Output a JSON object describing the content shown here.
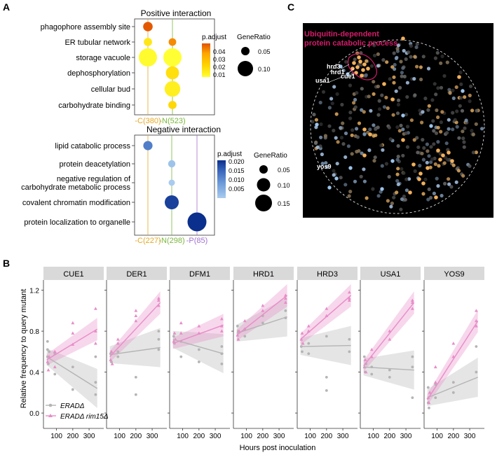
{
  "panel_labels": {
    "a": "A",
    "b": "B",
    "c": "C"
  },
  "colors": {
    "pos_scale": [
      "#ffff33",
      "#ffd400",
      "#ffa500",
      "#f07800",
      "#e05200"
    ],
    "neg_scale": [
      "#a8cbef",
      "#6c9ad8",
      "#3561b8",
      "#0b2f8c"
    ],
    "group_C": "#e5a823",
    "group_N": "#7ab83c",
    "group_P": "#a070d0",
    "erad": "#b4b4b4",
    "rim": "#e88cc8",
    "cluster": "#d61b6a"
  },
  "panel_a": {
    "positive": {
      "title": "Positive interaction",
      "terms": [
        "phagophore assembly site",
        "ER tubular network",
        "storage vacuole",
        "dephosphorylation",
        "cellular bud",
        "carbohydrate binding"
      ],
      "groups": [
        "-C(380)",
        "-N(523)"
      ],
      "points": [
        {
          "term": 0,
          "group": 0,
          "ratio": 0.06,
          "padj": 0.043
        },
        {
          "term": 1,
          "group": 0,
          "ratio": 0.05,
          "padj": 0.008
        },
        {
          "term": 1,
          "group": 1,
          "ratio": 0.045,
          "padj": 0.03
        },
        {
          "term": 2,
          "group": 0,
          "ratio": 0.13,
          "padj": 0.003
        },
        {
          "term": 2,
          "group": 1,
          "ratio": 0.13,
          "padj": 0.002
        },
        {
          "term": 3,
          "group": 1,
          "ratio": 0.09,
          "padj": 0.01
        },
        {
          "term": 4,
          "group": 1,
          "ratio": 0.11,
          "padj": 0.006
        },
        {
          "term": 5,
          "group": 1,
          "ratio": 0.05,
          "padj": 0.012
        }
      ],
      "padj_title": "p.adjust",
      "padj_ticks": [
        "0.04",
        "0.03",
        "0.02",
        "0.01"
      ],
      "ratio_title": "GeneRatio",
      "ratio_ticks": [
        "0.05",
        "0.10"
      ]
    },
    "negative": {
      "title": "Negative interaction",
      "terms": [
        "lipid catabolic process",
        "protein deacetylation",
        "negative regulation of",
        "carbohydrate metabolic process",
        "covalent chromatin modification",
        "protein localization to organelle"
      ],
      "groups": [
        "-C(227)",
        "-N(298)",
        "-P(85)"
      ],
      "points": [
        {
          "row": 0,
          "group": 0,
          "ratio": 0.07,
          "padj": 0.012
        },
        {
          "row": 1,
          "group": 1,
          "ratio": 0.05,
          "padj": 0.004
        },
        {
          "row": 2,
          "group": 1,
          "ratio": 0.04,
          "padj": 0.003
        },
        {
          "row": 3,
          "group": 1,
          "ratio": 0.12,
          "padj": 0.019
        },
        {
          "row": 4,
          "group": 2,
          "ratio": 0.17,
          "padj": 0.021
        }
      ],
      "padj_title": "p.adjust",
      "padj_ticks": [
        "0.020",
        "0.015",
        "0.010",
        "0.005"
      ],
      "ratio_title": "GeneRatio",
      "ratio_ticks": [
        "0.05",
        "0.10",
        "0.15"
      ]
    }
  },
  "panel_b": {
    "chart_data": {
      "type": "scatter",
      "xlabel": "Hours post inoculation",
      "ylabel": "Relative frequency to query mutant",
      "xticks": [
        100,
        200,
        300
      ],
      "yticks": [
        "0.0",
        "0.4",
        "0.8",
        "1.2"
      ],
      "xlim": [
        20,
        390
      ],
      "ylim": [
        -0.15,
        1.3
      ],
      "legend": [
        "ERADΔ",
        "ERADΔ rim15Δ"
      ],
      "facets": [
        {
          "name": "CUE1",
          "erad": {
            "start": 0.55,
            "end": 0.24
          },
          "rim": {
            "start": 0.52,
            "end": 0.82
          },
          "erad_pts": [
            [
              45,
              0.7
            ],
            [
              45,
              0.62
            ],
            [
              45,
              0.55
            ],
            [
              50,
              0.48
            ],
            [
              55,
              0.6
            ],
            [
              90,
              0.58
            ],
            [
              90,
              0.38
            ],
            [
              200,
              0.45
            ],
            [
              200,
              0.23
            ],
            [
              340,
              0.55
            ],
            [
              340,
              0.3
            ],
            [
              340,
              0.18
            ]
          ],
          "rim_pts": [
            [
              45,
              0.5
            ],
            [
              50,
              0.42
            ],
            [
              55,
              0.55
            ],
            [
              90,
              0.6
            ],
            [
              90,
              0.45
            ],
            [
              200,
              0.78
            ],
            [
              200,
              0.67
            ],
            [
              200,
              0.88
            ],
            [
              340,
              1.02
            ],
            [
              340,
              0.8
            ],
            [
              340,
              0.68
            ]
          ]
        },
        {
          "name": "DER1",
          "erad": {
            "start": 0.57,
            "end": 0.64
          },
          "rim": {
            "start": 0.55,
            "end": 1.08
          },
          "erad_pts": [
            [
              45,
              0.58
            ],
            [
              50,
              0.5
            ],
            [
              90,
              0.6
            ],
            [
              90,
              0.55
            ],
            [
              200,
              0.35
            ],
            [
              200,
              0.18
            ],
            [
              340,
              0.62
            ],
            [
              340,
              0.72
            ],
            [
              340,
              0.8
            ]
          ],
          "rim_pts": [
            [
              45,
              0.52
            ],
            [
              50,
              0.6
            ],
            [
              55,
              0.48
            ],
            [
              90,
              0.72
            ],
            [
              90,
              0.68
            ],
            [
              200,
              0.95
            ],
            [
              200,
              0.9
            ],
            [
              200,
              1.0
            ],
            [
              340,
              1.05
            ],
            [
              340,
              1.1
            ],
            [
              340,
              1.12
            ]
          ]
        },
        {
          "name": "DFM1",
          "erad": {
            "start": 0.72,
            "end": 0.58
          },
          "rim": {
            "start": 0.68,
            "end": 0.86
          },
          "erad_pts": [
            [
              45,
              0.75
            ],
            [
              50,
              0.68
            ],
            [
              90,
              0.7
            ],
            [
              90,
              0.55
            ],
            [
              200,
              0.62
            ],
            [
              200,
              0.5
            ],
            [
              340,
              0.58
            ],
            [
              340,
              0.65
            ],
            [
              340,
              0.48
            ]
          ],
          "rim_pts": [
            [
              45,
              0.7
            ],
            [
              50,
              0.78
            ],
            [
              55,
              0.72
            ],
            [
              90,
              0.78
            ],
            [
              90,
              0.88
            ],
            [
              200,
              0.85
            ],
            [
              200,
              0.78
            ],
            [
              340,
              0.92
            ],
            [
              340,
              0.8
            ],
            [
              340,
              0.85
            ]
          ]
        },
        {
          "name": "HRD1",
          "erad": {
            "start": 0.78,
            "end": 0.94
          },
          "rim": {
            "start": 0.76,
            "end": 1.15
          },
          "erad_pts": [
            [
              45,
              0.85
            ],
            [
              50,
              0.8
            ],
            [
              90,
              0.82
            ],
            [
              90,
              0.75
            ],
            [
              200,
              0.88
            ],
            [
              200,
              0.95
            ],
            [
              340,
              0.93
            ],
            [
              340,
              1.0
            ]
          ],
          "rim_pts": [
            [
              45,
              0.76
            ],
            [
              50,
              0.72
            ],
            [
              55,
              0.8
            ],
            [
              90,
              0.82
            ],
            [
              90,
              0.9
            ],
            [
              200,
              1.0
            ],
            [
              200,
              1.05
            ],
            [
              340,
              1.15
            ],
            [
              340,
              1.12
            ],
            [
              340,
              1.08
            ]
          ]
        },
        {
          "name": "HRD3",
          "erad": {
            "start": 0.65,
            "end": 0.66
          },
          "rim": {
            "start": 0.72,
            "end": 1.15
          },
          "erad_pts": [
            [
              45,
              0.65
            ],
            [
              50,
              0.6
            ],
            [
              90,
              0.68
            ],
            [
              90,
              0.58
            ],
            [
              200,
              0.75
            ],
            [
              200,
              0.35
            ],
            [
              200,
              0.22
            ],
            [
              340,
              0.72
            ],
            [
              340,
              0.6
            ]
          ],
          "rim_pts": [
            [
              45,
              0.72
            ],
            [
              50,
              0.78
            ],
            [
              55,
              0.68
            ],
            [
              90,
              0.85
            ],
            [
              90,
              0.8
            ],
            [
              200,
              1.02
            ],
            [
              200,
              0.95
            ],
            [
              340,
              1.18
            ],
            [
              340,
              1.12
            ],
            [
              340,
              1.1
            ]
          ]
        },
        {
          "name": "USA1",
          "erad": {
            "start": 0.45,
            "end": 0.42
          },
          "rim": {
            "start": 0.46,
            "end": 1.08
          },
          "erad_pts": [
            [
              45,
              0.55
            ],
            [
              50,
              0.4
            ],
            [
              55,
              0.48
            ],
            [
              90,
              0.45
            ],
            [
              90,
              0.38
            ],
            [
              200,
              0.42
            ],
            [
              200,
              0.35
            ],
            [
              340,
              0.55
            ],
            [
              340,
              0.45
            ],
            [
              340,
              0.15
            ]
          ],
          "rim_pts": [
            [
              45,
              0.45
            ],
            [
              50,
              0.52
            ],
            [
              55,
              0.4
            ],
            [
              90,
              0.62
            ],
            [
              90,
              0.55
            ],
            [
              200,
              0.8
            ],
            [
              200,
              0.72
            ],
            [
              340,
              1.08
            ],
            [
              340,
              1.02
            ],
            [
              340,
              1.1
            ]
          ]
        },
        {
          "name": "YOS9",
          "erad": {
            "start": 0.15,
            "end": 0.35
          },
          "rim": {
            "start": 0.13,
            "end": 0.9
          },
          "erad_pts": [
            [
              45,
              0.25
            ],
            [
              45,
              0.1
            ],
            [
              50,
              0.05
            ],
            [
              90,
              0.15
            ],
            [
              90,
              0.28
            ],
            [
              200,
              0.3
            ],
            [
              200,
              0.2
            ],
            [
              340,
              0.4
            ],
            [
              340,
              0.65
            ]
          ],
          "rim_pts": [
            [
              45,
              0.15
            ],
            [
              50,
              0.1
            ],
            [
              55,
              0.2
            ],
            [
              90,
              0.3
            ],
            [
              90,
              0.45
            ],
            [
              200,
              0.55
            ],
            [
              200,
              0.68
            ],
            [
              340,
              0.9
            ],
            [
              340,
              1.0
            ],
            [
              340,
              0.85
            ]
          ]
        }
      ]
    }
  },
  "panel_c": {
    "cluster_label_line1": "Ubiquitin-dependent",
    "cluster_label_line2": "protein catabolic process",
    "genes": [
      "hrd3",
      "hrd1",
      "cue1",
      "usa1",
      "yos9"
    ]
  }
}
